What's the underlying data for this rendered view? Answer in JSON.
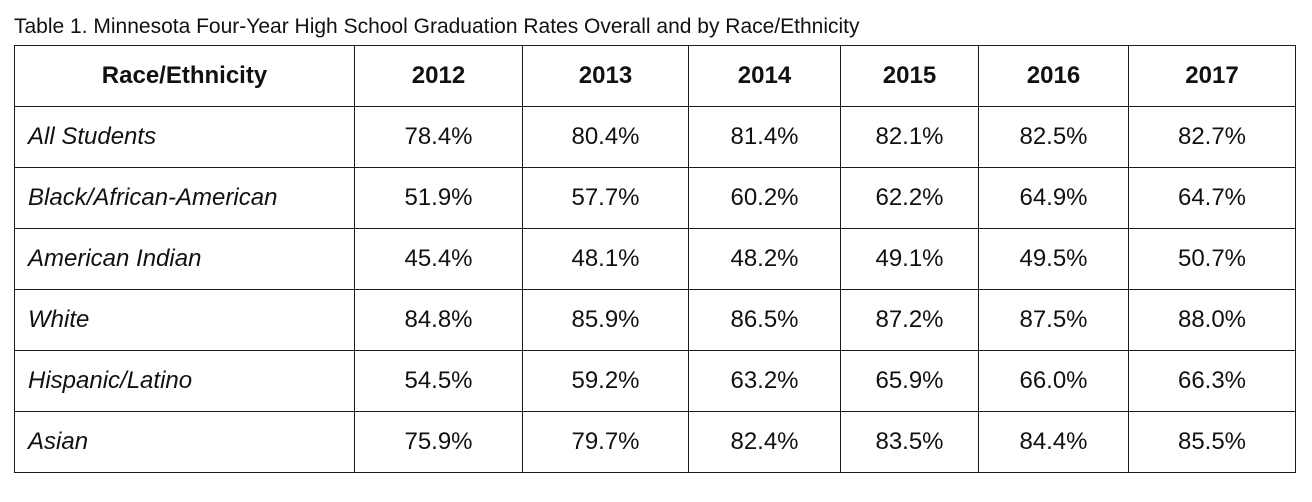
{
  "caption": "Table 1. Minnesota Four-Year High School Graduation Rates Overall and by Race/Ethnicity",
  "table": {
    "headers": [
      "Race/Ethnicity",
      "2012",
      "2013",
      "2014",
      "2015",
      "2016",
      "2017"
    ],
    "rows": [
      {
        "label": "All Students",
        "values": [
          "78.4%",
          "80.4%",
          "81.4%",
          "82.1%",
          "82.5%",
          "82.7%"
        ]
      },
      {
        "label": "Black/African-American",
        "values": [
          "51.9%",
          "57.7%",
          "60.2%",
          "62.2%",
          "64.9%",
          "64.7%"
        ]
      },
      {
        "label": "American Indian",
        "values": [
          "45.4%",
          "48.1%",
          "48.2%",
          "49.1%",
          "49.5%",
          "50.7%"
        ]
      },
      {
        "label": "White",
        "values": [
          "84.8%",
          "85.9%",
          "86.5%",
          "87.2%",
          "87.5%",
          "88.0%"
        ]
      },
      {
        "label": "Hispanic/Latino",
        "values": [
          "54.5%",
          "59.2%",
          "63.2%",
          "65.9%",
          "66.0%",
          "66.3%"
        ]
      },
      {
        "label": "Asian",
        "values": [
          "75.9%",
          "79.7%",
          "82.4%",
          "83.5%",
          "84.4%",
          "85.5%"
        ]
      }
    ]
  }
}
